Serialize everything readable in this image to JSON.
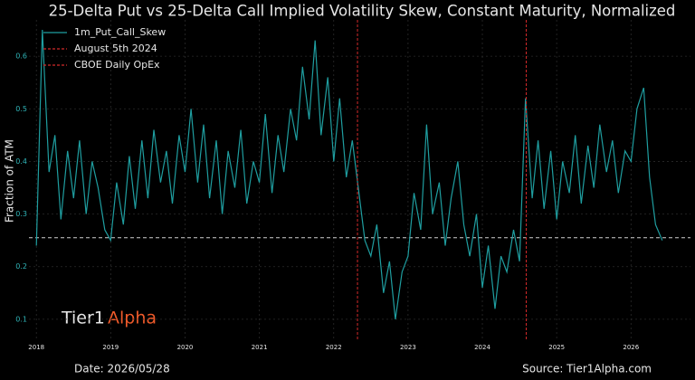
{
  "chart_data": {
    "type": "line",
    "title": "25-Delta Put vs 25-Delta Call Implied Volatility Skew, Constant Maturity, Normalized",
    "ylabel": "Fraction of ATM",
    "x": [
      2018.0,
      2018.08,
      2018.17,
      2018.25,
      2018.33,
      2018.42,
      2018.5,
      2018.58,
      2018.67,
      2018.75,
      2018.83,
      2018.92,
      2019.0,
      2019.08,
      2019.17,
      2019.25,
      2019.33,
      2019.42,
      2019.5,
      2019.58,
      2019.67,
      2019.75,
      2019.83,
      2019.92,
      2020.0,
      2020.08,
      2020.17,
      2020.25,
      2020.33,
      2020.42,
      2020.5,
      2020.58,
      2020.67,
      2020.75,
      2020.83,
      2020.92,
      2021.0,
      2021.08,
      2021.17,
      2021.25,
      2021.33,
      2021.42,
      2021.5,
      2021.58,
      2021.67,
      2021.75,
      2021.83,
      2021.92,
      2022.0,
      2022.08,
      2022.17,
      2022.25,
      2022.33,
      2022.42,
      2022.5,
      2022.58,
      2022.67,
      2022.75,
      2022.83,
      2022.92,
      2023.0,
      2023.08,
      2023.17,
      2023.25,
      2023.33,
      2023.42,
      2023.5,
      2023.58,
      2023.67,
      2023.75,
      2023.83,
      2023.92,
      2024.0,
      2024.08,
      2024.17,
      2024.25,
      2024.33,
      2024.42,
      2024.5,
      2024.58,
      2024.67,
      2024.75,
      2024.83,
      2024.92,
      2025.0,
      2025.08,
      2025.17,
      2025.25,
      2025.33,
      2025.42,
      2025.5,
      2025.58,
      2025.67,
      2025.75,
      2025.83,
      2025.92,
      2026.0,
      2026.08,
      2026.17,
      2026.25,
      2026.33,
      2026.42
    ],
    "series": [
      {
        "name": "1m_Put_Call_Skew",
        "color": "#1f9ea0",
        "values": [
          0.24,
          0.65,
          0.38,
          0.45,
          0.29,
          0.42,
          0.33,
          0.44,
          0.3,
          0.4,
          0.35,
          0.27,
          0.25,
          0.36,
          0.28,
          0.41,
          0.31,
          0.44,
          0.33,
          0.46,
          0.36,
          0.42,
          0.32,
          0.45,
          0.38,
          0.5,
          0.36,
          0.47,
          0.33,
          0.44,
          0.3,
          0.42,
          0.35,
          0.46,
          0.32,
          0.4,
          0.36,
          0.49,
          0.34,
          0.45,
          0.38,
          0.5,
          0.44,
          0.58,
          0.48,
          0.63,
          0.45,
          0.56,
          0.4,
          0.52,
          0.37,
          0.44,
          0.35,
          0.25,
          0.22,
          0.28,
          0.15,
          0.21,
          0.1,
          0.19,
          0.22,
          0.34,
          0.27,
          0.47,
          0.3,
          0.36,
          0.24,
          0.33,
          0.4,
          0.28,
          0.22,
          0.3,
          0.16,
          0.24,
          0.12,
          0.22,
          0.19,
          0.27,
          0.21,
          0.52,
          0.33,
          0.44,
          0.31,
          0.42,
          0.29,
          0.4,
          0.34,
          0.45,
          0.32,
          0.43,
          0.35,
          0.47,
          0.38,
          0.44,
          0.34,
          0.42,
          0.4,
          0.5,
          0.54,
          0.37,
          0.28,
          0.25
        ]
      }
    ],
    "vlines": [
      {
        "name": "August 5th 2024",
        "x": 2024.59,
        "color": "#d42a2a"
      },
      {
        "name": "CBOE Daily OpEx",
        "x": 2022.32,
        "color": "#d42a2a"
      }
    ],
    "hline": {
      "y": 0.255,
      "color": "#cfcfcf"
    },
    "xlim": [
      2017.9,
      2026.8
    ],
    "xticks": [
      2018,
      2019,
      2020,
      2021,
      2022,
      2023,
      2024,
      2025,
      2026
    ],
    "ylim": [
      0.062,
      0.669
    ],
    "yticks": [
      0.1,
      0.2,
      0.3,
      0.4,
      0.5,
      0.6
    ],
    "grid": true,
    "legend": "upper left",
    "brand": [
      "Tier1",
      "Alpha"
    ],
    "footer_left": "Date: 2026/05/28",
    "footer_right": "Source: Tier1Alpha.com"
  }
}
